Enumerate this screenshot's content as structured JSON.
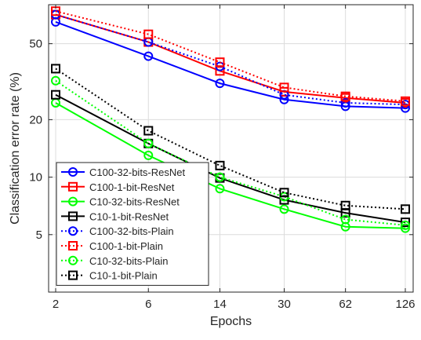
{
  "chart_data": {
    "type": "line",
    "xlabel": "Epochs",
    "ylabel": "Classification error rate (%)",
    "x_scale": "log2",
    "y_scale": "log",
    "xlim": [
      2,
      126
    ],
    "ylim": [
      2.5,
      80
    ],
    "x_ticks": [
      2,
      6,
      14,
      30,
      62,
      126
    ],
    "y_ticks": [
      5,
      10,
      20,
      50
    ],
    "x": [
      2,
      6,
      14,
      30,
      62,
      126
    ],
    "grid": true,
    "legend_position": "bottom-left",
    "series": [
      {
        "name": "C100-32-bits-ResNet",
        "color": "#0000ff",
        "line": "solid",
        "marker": "circle",
        "values": [
          65,
          43,
          31,
          25.5,
          23.5,
          23
        ]
      },
      {
        "name": "C100-1-bit-ResNet",
        "color": "#ff0000",
        "line": "solid",
        "marker": "square",
        "values": [
          71,
          51,
          36,
          28,
          26,
          24.5
        ]
      },
      {
        "name": "C10-32-bits-ResNet",
        "color": "#00ff00",
        "line": "solid",
        "marker": "circle",
        "values": [
          24.5,
          13,
          8.7,
          6.8,
          5.5,
          5.4
        ]
      },
      {
        "name": "C10-1-bit-ResNet",
        "color": "#000000",
        "line": "solid",
        "marker": "square",
        "values": [
          27,
          15,
          9.9,
          7.6,
          6.5,
          5.8
        ]
      },
      {
        "name": "C100-32-bits-Plain",
        "color": "#0000ff",
        "line": "dotted",
        "marker": "circle",
        "values": [
          71,
          51,
          38,
          27,
          24.5,
          24
        ]
      },
      {
        "name": "C100-1-bit-Plain",
        "color": "#ff0000",
        "line": "dotted",
        "marker": "square",
        "values": [
          74,
          56,
          40,
          29.5,
          26.5,
          25
        ]
      },
      {
        "name": "C10-32-bits-Plain",
        "color": "#00ff00",
        "line": "dotted",
        "marker": "circle",
        "values": [
          32,
          15,
          10,
          7.9,
          6,
          5.6
        ]
      },
      {
        "name": "C10-1-bit-Plain",
        "color": "#000000",
        "line": "dotted",
        "marker": "square",
        "values": [
          37,
          17.5,
          11.5,
          8.3,
          7.1,
          6.8
        ]
      }
    ]
  }
}
